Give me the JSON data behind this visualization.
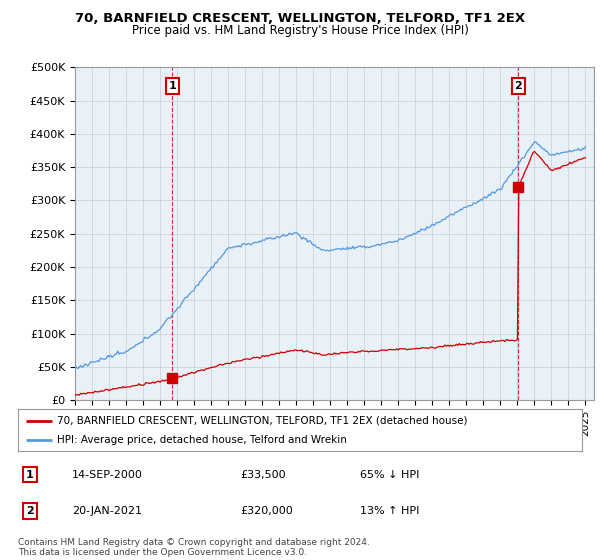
{
  "title": "70, BARNFIELD CRESCENT, WELLINGTON, TELFORD, TF1 2EX",
  "subtitle": "Price paid vs. HM Land Registry's House Price Index (HPI)",
  "ylabel_ticks": [
    "£0",
    "£50K",
    "£100K",
    "£150K",
    "£200K",
    "£250K",
    "£300K",
    "£350K",
    "£400K",
    "£450K",
    "£500K"
  ],
  "ytick_values": [
    0,
    50000,
    100000,
    150000,
    200000,
    250000,
    300000,
    350000,
    400000,
    450000,
    500000
  ],
  "ylim": [
    0,
    500000
  ],
  "xlim_start": 1995.0,
  "xlim_end": 2025.5,
  "hpi_color": "#5599dd",
  "price_color": "#cc0000",
  "sale1_x": 2000.72,
  "sale1_y": 33500,
  "sale2_x": 2021.05,
  "sale2_y": 320000,
  "legend_label1": "70, BARNFIELD CRESCENT, WELLINGTON, TELFORD, TF1 2EX (detached house)",
  "legend_label2": "HPI: Average price, detached house, Telford and Wrekin",
  "table_rows": [
    {
      "num": "1",
      "date": "14-SEP-2000",
      "price": "£33,500",
      "change": "65% ↓ HPI"
    },
    {
      "num": "2",
      "date": "20-JAN-2021",
      "price": "£320,000",
      "change": "13% ↑ HPI"
    }
  ],
  "footer": "Contains HM Land Registry data © Crown copyright and database right 2024.\nThis data is licensed under the Open Government Licence v3.0.",
  "background_color": "#ffffff",
  "chart_bg_color": "#e8f0f8",
  "grid_color": "#cccccc"
}
